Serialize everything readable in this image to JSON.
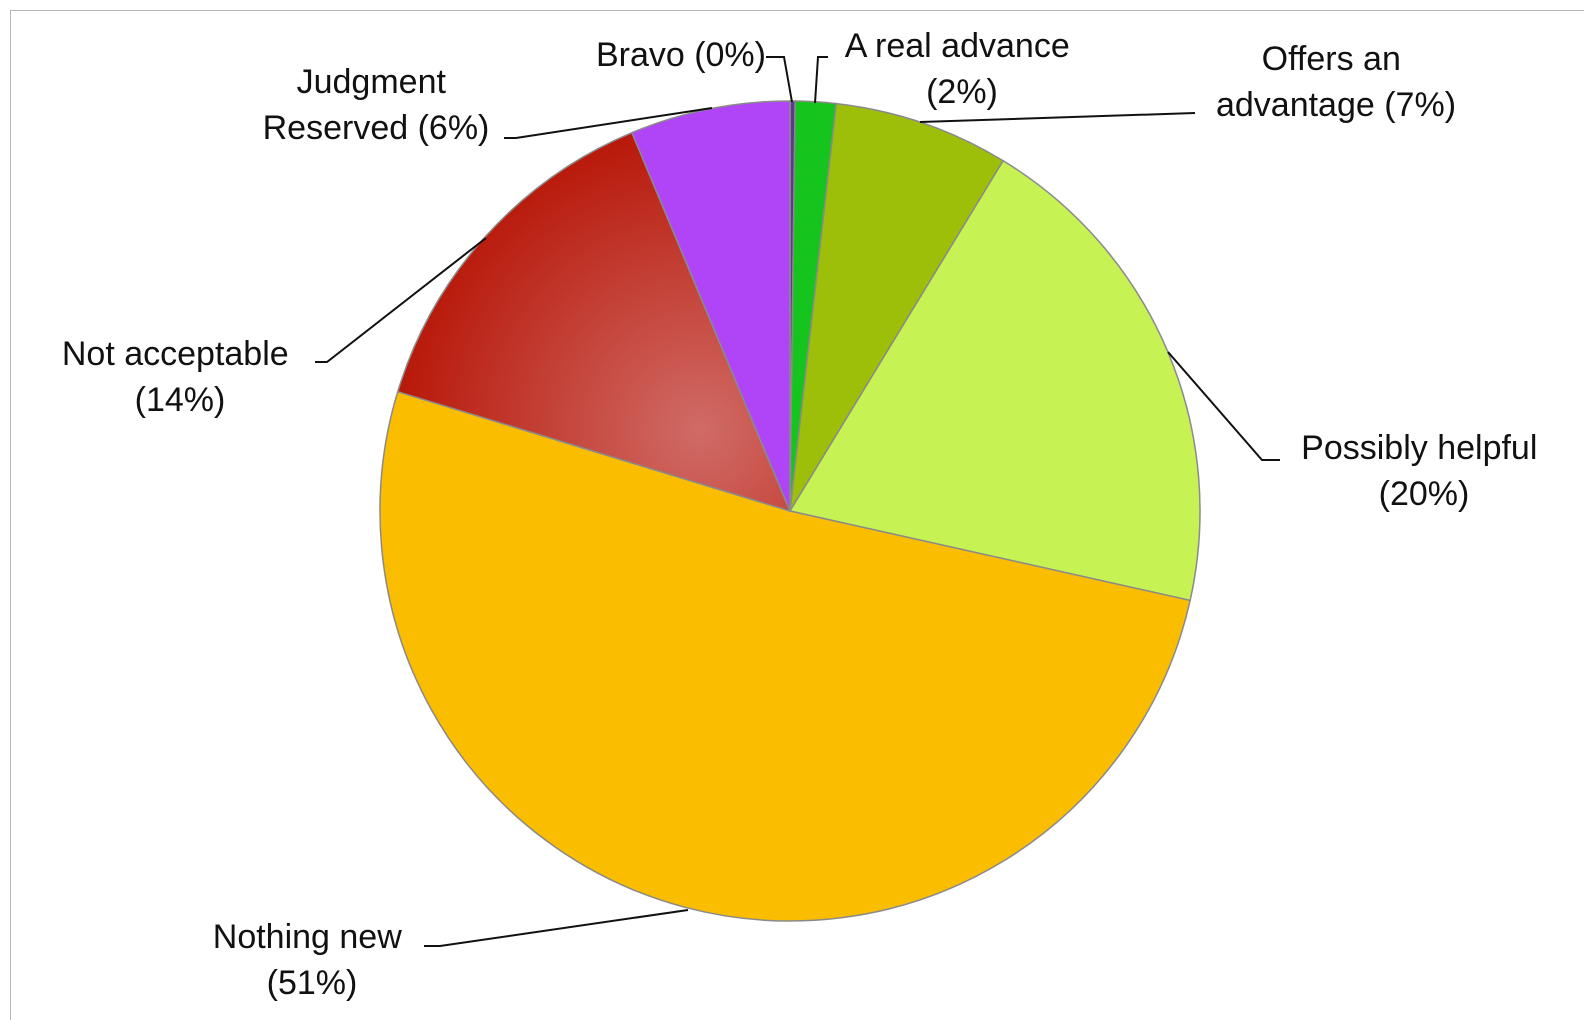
{
  "chart_data": {
    "type": "pie",
    "title": "",
    "slices": [
      {
        "key": "bravo",
        "label_lines": [
          "Bravo (0%)"
        ],
        "value": 0.2,
        "color": "#5b3a8e"
      },
      {
        "key": "real",
        "label_lines": [
          "A real advance",
          "(2%)"
        ],
        "value": 1.6,
        "color": "#16c41e"
      },
      {
        "key": "advantage",
        "label_lines": [
          "Offers an",
          "advantage (7%)"
        ],
        "value": 6.9,
        "color": "#9dbf0a"
      },
      {
        "key": "helpful",
        "label_lines": [
          "Possibly helpful",
          "(20%)"
        ],
        "value": 19.8,
        "color": "#c6f254"
      },
      {
        "key": "nothingnew",
        "label_lines": [
          "Nothing new",
          "(51%)"
        ],
        "value": 51.2,
        "color": "#fbbd00"
      },
      {
        "key": "notaccept",
        "label_lines": [
          "Not acceptable",
          "(14%)"
        ],
        "value": 14.0,
        "color": "#b8190a",
        "highlight": "#d06b66"
      },
      {
        "key": "judgment",
        "label_lines": [
          "Judgment",
          "Reserved (6%)"
        ],
        "value": 6.3,
        "color": "#b045f8"
      }
    ],
    "start_position": "top",
    "direction": "clockwise",
    "legend": "none"
  }
}
